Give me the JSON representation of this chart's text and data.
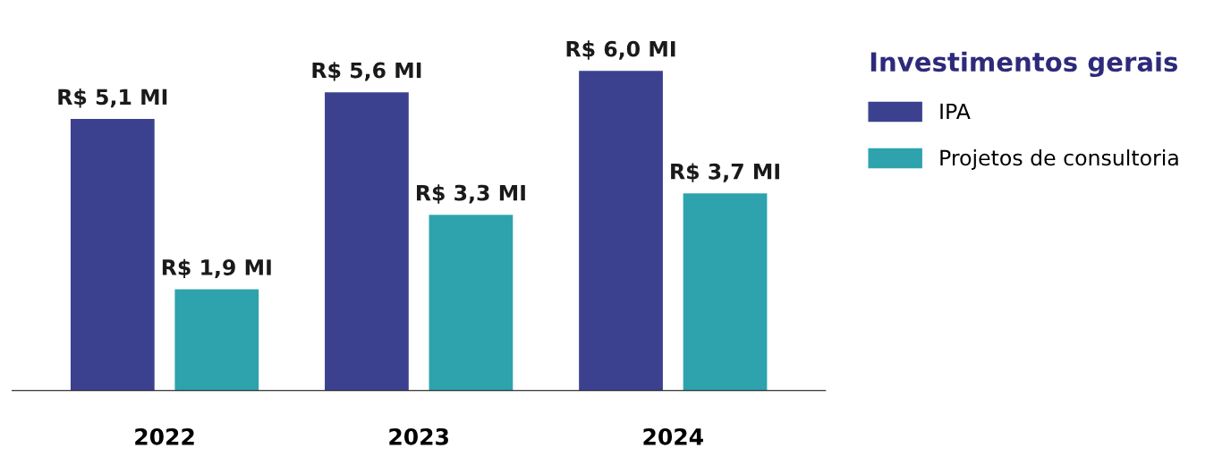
{
  "chart_data": {
    "type": "bar",
    "categories": [
      "2022",
      "2023",
      "2024"
    ],
    "legend_title": "Investimentos gerais",
    "legend": "right",
    "grid": false,
    "series": [
      {
        "name": "IPA",
        "color": "#3c418f",
        "values": [
          5.1,
          5.6,
          6.0
        ],
        "value_labels": [
          "R$ 5,1 MI",
          "R$ 5,6 MI",
          "R$ 6,0 MI"
        ]
      },
      {
        "name": "Projetos de consultoria",
        "color": "#2ea3ad",
        "values": [
          1.9,
          3.3,
          3.7
        ],
        "value_labels": [
          "R$ 1,9 MI",
          "R$ 3,3 MI",
          "R$ 3,7 MI"
        ]
      }
    ]
  }
}
